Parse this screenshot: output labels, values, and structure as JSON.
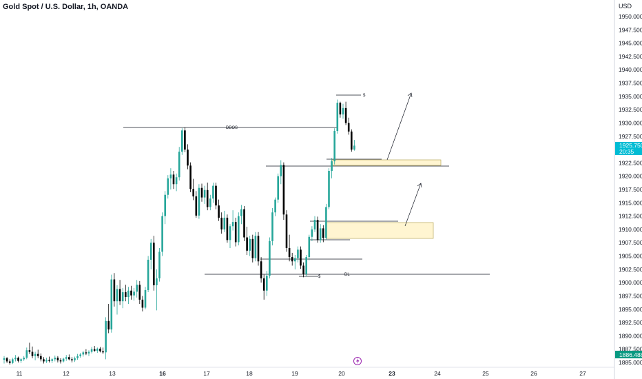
{
  "header": {
    "title": "Gold Spot / U.S. Dollar, 1h, OANDA",
    "currency": "USD"
  },
  "chart_data": {
    "type": "candlestick",
    "ylim": [
      1885,
      1950
    ],
    "y_ticks": [
      "1950.000",
      "1947.500",
      "1945.000",
      "1942.500",
      "1940.000",
      "1937.500",
      "1935.000",
      "1932.500",
      "1930.000",
      "1927.500",
      "1925.000",
      "1922.500",
      "1920.000",
      "1917.500",
      "1915.000",
      "1912.500",
      "1910.000",
      "1907.500",
      "1905.000",
      "1902.500",
      "1900.000",
      "1897.500",
      "1895.000",
      "1892.500",
      "1890.000",
      "1887.500",
      "1885.000"
    ],
    "x_ticks": [
      {
        "label": "11",
        "t": 0,
        "bold": false
      },
      {
        "label": "12",
        "t": 1,
        "bold": false
      },
      {
        "label": "13",
        "t": 2,
        "bold": false
      },
      {
        "label": "16",
        "t": 3,
        "bold": true
      },
      {
        "label": "17",
        "t": 4,
        "bold": false
      },
      {
        "label": "18",
        "t": 5,
        "bold": false
      },
      {
        "label": "19",
        "t": 6,
        "bold": false
      },
      {
        "label": "20",
        "t": 7,
        "bold": false
      },
      {
        "label": "23",
        "t": 8,
        "bold": true
      },
      {
        "label": "24",
        "t": 9,
        "bold": false
      },
      {
        "label": "25",
        "t": 10,
        "bold": false
      },
      {
        "label": "26",
        "t": 11,
        "bold": false
      },
      {
        "label": "27",
        "t": 12,
        "bold": false
      }
    ],
    "price_tags": [
      {
        "label": "1925.750",
        "sub": "20:35",
        "value": 1925.75,
        "color": "#00bcd4"
      },
      {
        "label": "1886.488",
        "sub": "",
        "value": 1886.488,
        "color": "#089981"
      }
    ],
    "annotations": [
      {
        "label": "DBOS",
        "value": 1929.5
      },
      {
        "label": "$",
        "value": 1935.3
      },
      {
        "label": "$",
        "value": 1901.2
      },
      {
        "label": "DL",
        "value": 1901.5
      }
    ],
    "up_color": "#26a69a",
    "down_color": "#000000",
    "candles": [
      [
        1885.5,
        1886.2,
        1884.8,
        1885.8
      ],
      [
        1885.8,
        1886.0,
        1884.9,
        1885.2
      ],
      [
        1885.2,
        1885.6,
        1884.6,
        1884.9
      ],
      [
        1884.9,
        1885.9,
        1884.7,
        1885.6
      ],
      [
        1885.6,
        1886.4,
        1885.2,
        1885.9
      ],
      [
        1885.9,
        1886.1,
        1885.0,
        1885.3
      ],
      [
        1885.3,
        1885.8,
        1884.9,
        1885.6
      ],
      [
        1885.6,
        1886.2,
        1885.3,
        1885.9
      ],
      [
        1885.9,
        1887.8,
        1885.6,
        1887.3
      ],
      [
        1887.3,
        1888.7,
        1886.6,
        1887.0
      ],
      [
        1887.0,
        1888.0,
        1885.8,
        1886.2
      ],
      [
        1886.2,
        1887.0,
        1885.4,
        1886.6
      ],
      [
        1886.6,
        1887.4,
        1885.8,
        1886.2
      ],
      [
        1886.2,
        1886.7,
        1885.2,
        1885.6
      ],
      [
        1885.6,
        1886.0,
        1884.8,
        1885.2
      ],
      [
        1885.2,
        1885.9,
        1884.9,
        1885.5
      ],
      [
        1885.5,
        1886.1,
        1885.0,
        1885.3
      ],
      [
        1885.3,
        1885.8,
        1884.9,
        1885.6
      ],
      [
        1885.6,
        1886.3,
        1885.2,
        1885.9
      ],
      [
        1885.9,
        1886.2,
        1885.0,
        1885.4
      ],
      [
        1885.4,
        1885.8,
        1884.8,
        1885.2
      ],
      [
        1885.2,
        1885.9,
        1885.0,
        1885.7
      ],
      [
        1885.7,
        1886.4,
        1885.3,
        1886.0
      ],
      [
        1886.0,
        1886.5,
        1885.4,
        1885.6
      ],
      [
        1885.6,
        1886.0,
        1885.0,
        1885.4
      ],
      [
        1885.4,
        1886.1,
        1885.1,
        1885.8
      ],
      [
        1885.8,
        1886.6,
        1885.5,
        1886.2
      ],
      [
        1886.2,
        1886.8,
        1885.9,
        1886.5
      ],
      [
        1886.5,
        1887.2,
        1886.1,
        1886.9
      ],
      [
        1886.9,
        1887.5,
        1886.4,
        1886.7
      ],
      [
        1886.7,
        1887.3,
        1886.2,
        1887.0
      ],
      [
        1887.0,
        1887.9,
        1886.7,
        1887.5
      ],
      [
        1887.5,
        1888.1,
        1887.0,
        1887.2
      ],
      [
        1887.2,
        1887.8,
        1886.8,
        1887.6
      ],
      [
        1887.6,
        1887.9,
        1886.9,
        1887.1
      ],
      [
        1887.1,
        1887.8,
        1886.6,
        1886.9
      ],
      [
        1886.9,
        1893.5,
        1885.6,
        1892.8
      ],
      [
        1892.8,
        1896.0,
        1890.5,
        1891.2
      ],
      [
        1891.2,
        1901.5,
        1890.6,
        1900.6
      ],
      [
        1900.6,
        1901.8,
        1895.5,
        1896.5
      ],
      [
        1896.5,
        1899.5,
        1894.0,
        1898.8
      ],
      [
        1898.8,
        1900.5,
        1895.8,
        1896.5
      ],
      [
        1896.5,
        1899.0,
        1895.2,
        1898.2
      ],
      [
        1898.2,
        1899.6,
        1896.5,
        1897.3
      ],
      [
        1897.3,
        1899.2,
        1896.0,
        1898.5
      ],
      [
        1898.5,
        1899.4,
        1896.8,
        1897.6
      ],
      [
        1897.6,
        1899.0,
        1896.6,
        1898.3
      ],
      [
        1898.3,
        1900.5,
        1897.2,
        1899.6
      ],
      [
        1899.6,
        1900.3,
        1896.0,
        1896.8
      ],
      [
        1896.8,
        1897.5,
        1894.6,
        1895.3
      ],
      [
        1895.3,
        1899.2,
        1895.0,
        1898.6
      ],
      [
        1898.6,
        1905.0,
        1898.2,
        1904.3
      ],
      [
        1904.3,
        1908.2,
        1902.5,
        1907.5
      ],
      [
        1907.5,
        1908.8,
        1898.5,
        1899.5
      ],
      [
        1899.5,
        1902.5,
        1894.8,
        1900.8
      ],
      [
        1900.8,
        1906.5,
        1900.2,
        1905.8
      ],
      [
        1905.8,
        1913.2,
        1905.0,
        1912.5
      ],
      [
        1912.5,
        1917.2,
        1911.0,
        1916.5
      ],
      [
        1916.5,
        1920.2,
        1915.8,
        1919.6
      ],
      [
        1919.6,
        1921.5,
        1917.5,
        1920.3
      ],
      [
        1920.3,
        1921.0,
        1917.6,
        1918.5
      ],
      [
        1918.5,
        1920.5,
        1917.2,
        1919.8
      ],
      [
        1919.8,
        1925.5,
        1919.2,
        1924.6
      ],
      [
        1924.6,
        1929.0,
        1924.0,
        1928.6
      ],
      [
        1928.6,
        1929.2,
        1924.5,
        1925.0
      ],
      [
        1925.0,
        1926.0,
        1921.3,
        1922.0
      ],
      [
        1922.0,
        1922.6,
        1917.0,
        1917.6
      ],
      [
        1917.6,
        1919.5,
        1915.5,
        1916.2
      ],
      [
        1916.2,
        1917.2,
        1912.2,
        1912.6
      ],
      [
        1912.6,
        1918.5,
        1912.0,
        1917.8
      ],
      [
        1917.8,
        1918.6,
        1915.2,
        1916.0
      ],
      [
        1916.0,
        1918.2,
        1914.8,
        1917.4
      ],
      [
        1917.4,
        1918.8,
        1913.6,
        1914.2
      ],
      [
        1914.2,
        1916.5,
        1913.6,
        1915.8
      ],
      [
        1915.8,
        1918.8,
        1915.0,
        1918.2
      ],
      [
        1918.2,
        1918.8,
        1913.8,
        1914.5
      ],
      [
        1914.5,
        1915.6,
        1911.6,
        1912.2
      ],
      [
        1912.2,
        1913.2,
        1909.2,
        1910.0
      ],
      [
        1910.0,
        1913.5,
        1909.5,
        1912.2
      ],
      [
        1912.2,
        1912.8,
        1907.5,
        1908.0
      ],
      [
        1908.0,
        1911.0,
        1906.5,
        1910.6
      ],
      [
        1910.6,
        1913.6,
        1909.8,
        1911.4
      ],
      [
        1911.4,
        1912.2,
        1906.8,
        1907.6
      ],
      [
        1907.6,
        1913.2,
        1907.0,
        1912.5
      ],
      [
        1912.5,
        1914.6,
        1911.0,
        1913.8
      ],
      [
        1913.8,
        1914.4,
        1907.8,
        1908.5
      ],
      [
        1908.5,
        1910.5,
        1905.2,
        1906.0
      ],
      [
        1906.0,
        1908.8,
        1905.0,
        1908.2
      ],
      [
        1908.2,
        1909.0,
        1903.8,
        1904.6
      ],
      [
        1904.6,
        1909.5,
        1904.0,
        1908.8
      ],
      [
        1908.8,
        1909.5,
        1903.2,
        1904.0
      ],
      [
        1904.0,
        1904.8,
        1900.0,
        1900.8
      ],
      [
        1900.8,
        1901.5,
        1896.8,
        1898.5
      ],
      [
        1898.5,
        1902.2,
        1897.5,
        1901.3
      ],
      [
        1901.3,
        1908.5,
        1900.8,
        1907.8
      ],
      [
        1907.8,
        1914.0,
        1907.0,
        1913.2
      ],
      [
        1913.2,
        1916.0,
        1912.5,
        1915.6
      ],
      [
        1915.6,
        1920.5,
        1915.0,
        1920.0
      ],
      [
        1920.0,
        1923.0,
        1918.5,
        1922.1
      ],
      [
        1922.1,
        1922.6,
        1911.8,
        1912.8
      ],
      [
        1912.8,
        1913.6,
        1905.8,
        1906.5
      ],
      [
        1906.5,
        1909.0,
        1904.0,
        1904.8
      ],
      [
        1904.8,
        1905.6,
        1903.2,
        1904.0
      ],
      [
        1904.0,
        1905.2,
        1902.5,
        1904.6
      ],
      [
        1904.6,
        1906.8,
        1903.8,
        1906.2
      ],
      [
        1906.2,
        1906.8,
        1902.6,
        1903.2
      ],
      [
        1903.2,
        1903.8,
        1901.0,
        1901.6
      ],
      [
        1901.6,
        1905.2,
        1901.2,
        1904.8
      ],
      [
        1904.8,
        1909.0,
        1904.2,
        1908.6
      ],
      [
        1908.6,
        1910.6,
        1907.8,
        1910.0
      ],
      [
        1910.0,
        1912.5,
        1909.5,
        1911.8
      ],
      [
        1911.8,
        1912.4,
        1907.5,
        1908.0
      ],
      [
        1908.0,
        1911.0,
        1907.5,
        1910.2
      ],
      [
        1910.2,
        1910.8,
        1907.6,
        1908.4
      ],
      [
        1908.4,
        1914.8,
        1908.0,
        1914.2
      ],
      [
        1914.2,
        1921.5,
        1913.8,
        1921.0
      ],
      [
        1921.0,
        1923.4,
        1919.6,
        1922.8
      ],
      [
        1922.8,
        1929.0,
        1922.2,
        1928.5
      ],
      [
        1928.5,
        1934.4,
        1928.0,
        1933.8
      ],
      [
        1933.8,
        1934.0,
        1931.0,
        1931.6
      ],
      [
        1931.6,
        1933.6,
        1930.8,
        1932.8
      ],
      [
        1932.8,
        1934.0,
        1929.6,
        1930.0
      ],
      [
        1930.0,
        1931.0,
        1927.8,
        1928.4
      ],
      [
        1928.4,
        1928.8,
        1924.6,
        1925.0
      ],
      [
        1925.0,
        1926.8,
        1924.8,
        1925.75
      ]
    ]
  }
}
